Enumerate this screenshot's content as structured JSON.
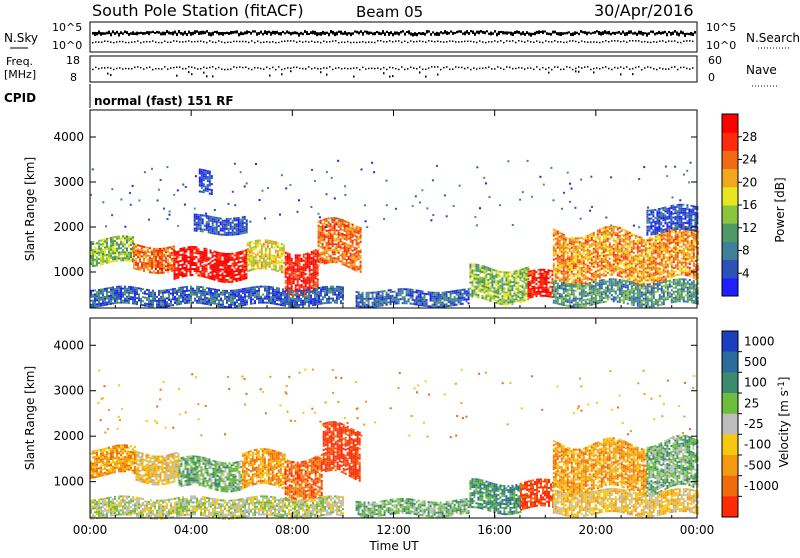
{
  "header": {
    "station": "South Pole Station (fitACF)",
    "beam": "Beam 05",
    "date": "30/Apr/2016"
  },
  "params": {
    "nsky_label": "N.Sky",
    "nsearch_label": "N.Search",
    "freq_label_1": "Freq.",
    "freq_label_2": "[MHz]",
    "nave_label": "Nave",
    "cpid_label": "CPID",
    "cpid_value": "normal (fast) 151 RF",
    "nsky_ticks": [
      "10^5",
      "10^0"
    ],
    "nsearch_ticks": [
      "10^5",
      "10^0"
    ],
    "freq_ticks": [
      "18",
      "8"
    ],
    "nave_ticks": [
      "60",
      "0"
    ]
  },
  "colors": {
    "power_scale": [
      "#1f1fff",
      "#2a52b8",
      "#3f7f9a",
      "#4e9966",
      "#8cc43f",
      "#e8e61e",
      "#f2a71c",
      "#f06b13",
      "#ff2b0c",
      "#ff0000"
    ],
    "velocity_scale": [
      "#1d3fbf",
      "#2c6c9b",
      "#3c8a6e",
      "#6cbd3c",
      "#bdbdbd",
      "#f6c80e",
      "#f49a10",
      "#f06a0c",
      "#ff2a06"
    ],
    "ground_scatter": "#9b9b9b"
  },
  "chart_data": [
    {
      "type": "heatmap",
      "name": "power-panel",
      "xlabel": "Time UT",
      "ylabel": "Slant Range [km]",
      "xlim": [
        0,
        24
      ],
      "ylim": [
        200,
        4600
      ],
      "x_ticks": [
        "00:00",
        "04:00",
        "08:00",
        "12:00",
        "16:00",
        "20:00",
        "00:00"
      ],
      "y_ticks": [
        1000,
        2000,
        3000,
        4000
      ],
      "colorbar": {
        "label": "Power [dB]",
        "range": [
          0,
          32
        ],
        "ticks": [
          4,
          8,
          12,
          16,
          20,
          24,
          28
        ]
      },
      "scatter_regions": [
        {
          "t0": 0.0,
          "t1": 1.7,
          "r0": 1200,
          "r1": 1750,
          "level": 14
        },
        {
          "t0": 1.7,
          "t1": 3.3,
          "r0": 1050,
          "r1": 1600,
          "level": 24
        },
        {
          "t0": 3.3,
          "t1": 6.2,
          "r0": 850,
          "r1": 1500,
          "level": 30
        },
        {
          "t0": 6.2,
          "t1": 7.7,
          "r0": 1000,
          "r1": 1650,
          "level": 18
        },
        {
          "t0": 7.7,
          "t1": 9.0,
          "r0": 600,
          "r1": 1500,
          "level": 29
        },
        {
          "t0": 9.0,
          "t1": 10.7,
          "r0": 1100,
          "r1": 2100,
          "level": 24
        },
        {
          "t0": 0.0,
          "t1": 10.0,
          "r0": 250,
          "r1": 650,
          "level": 6
        },
        {
          "t0": 10.5,
          "t1": 15.0,
          "r0": 260,
          "r1": 600,
          "level": 6
        },
        {
          "t0": 15.0,
          "t1": 17.3,
          "r0": 350,
          "r1": 1100,
          "level": 14
        },
        {
          "t0": 17.3,
          "t1": 18.3,
          "r0": 400,
          "r1": 1000,
          "level": 29
        },
        {
          "t0": 18.3,
          "t1": 24.0,
          "r0": 800,
          "r1": 1900,
          "level": 22
        },
        {
          "t0": 18.3,
          "t1": 24.0,
          "r0": 300,
          "r1": 800,
          "level": 10
        },
        {
          "t0": 4.1,
          "t1": 6.2,
          "r0": 1850,
          "r1": 2250,
          "level": 5
        },
        {
          "t0": 22.0,
          "t1": 24.0,
          "r0": 1900,
          "r1": 2450,
          "level": 5
        },
        {
          "t0": 4.3,
          "t1": 4.8,
          "r0": 2750,
          "r1": 3250,
          "level": 4
        }
      ]
    },
    {
      "type": "heatmap",
      "name": "velocity-panel",
      "xlabel": "Time UT",
      "ylabel": "Slant Range [km]",
      "xlim": [
        0,
        24
      ],
      "ylim": [
        200,
        4600
      ],
      "x_ticks": [
        "00:00",
        "04:00",
        "08:00",
        "12:00",
        "16:00",
        "20:00",
        "00:00"
      ],
      "y_ticks": [
        1000,
        2000,
        3000,
        4000
      ],
      "colorbar": {
        "label": "Velocity [m s^-1]",
        "tick_labels": [
          "1000",
          "500",
          "100",
          "25",
          "-25",
          "-100",
          "-500",
          "-1000"
        ]
      },
      "scatter_regions": [
        {
          "t0": 0.0,
          "t1": 1.8,
          "r0": 1150,
          "r1": 1750,
          "level": 6
        },
        {
          "t0": 1.8,
          "t1": 3.5,
          "r0": 1000,
          "r1": 1650,
          "level": 5
        },
        {
          "t0": 3.5,
          "t1": 6.0,
          "r0": 850,
          "r1": 1500,
          "level": 3
        },
        {
          "t0": 6.0,
          "t1": 7.7,
          "r0": 900,
          "r1": 1650,
          "level": 6
        },
        {
          "t0": 7.7,
          "t1": 9.2,
          "r0": 650,
          "r1": 1550,
          "level": 7
        },
        {
          "t0": 9.2,
          "t1": 10.7,
          "r0": 1100,
          "r1": 2200,
          "level": 8
        },
        {
          "t0": 0.0,
          "t1": 10.0,
          "r0": 250,
          "r1": 650,
          "level": 4
        },
        {
          "t0": 10.5,
          "t1": 15.0,
          "r0": 260,
          "r1": 600,
          "level": 3
        },
        {
          "t0": 15.0,
          "t1": 17.0,
          "r0": 350,
          "r1": 1000,
          "level": 2
        },
        {
          "t0": 17.0,
          "t1": 18.3,
          "r0": 400,
          "r1": 1000,
          "level": 8
        },
        {
          "t0": 18.3,
          "t1": 22.0,
          "r0": 800,
          "r1": 1850,
          "level": 6
        },
        {
          "t0": 22.0,
          "t1": 24.0,
          "r0": 800,
          "r1": 1900,
          "level": 3
        },
        {
          "t0": 18.3,
          "t1": 24.0,
          "r0": 300,
          "r1": 800,
          "level": 5
        }
      ]
    }
  ]
}
